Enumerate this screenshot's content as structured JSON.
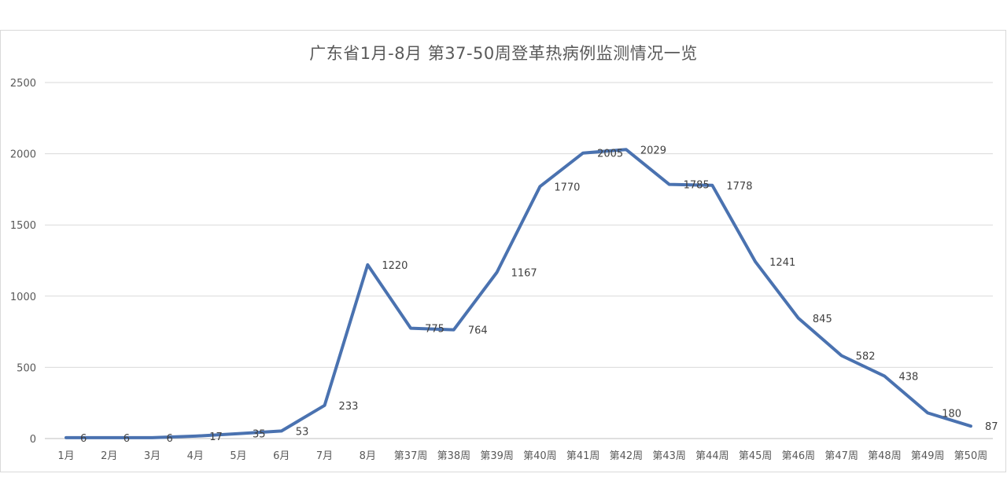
{
  "chart_data": {
    "type": "line",
    "title": "广东省1月-8月 第37-50周登革热病例监测情况一览",
    "categories": [
      "1月",
      "2月",
      "3月",
      "4月",
      "5月",
      "6月",
      "7月",
      "8月",
      "第37周",
      "第38周",
      "第39周",
      "第40周",
      "第41周",
      "第42周",
      "第43周",
      "第44周",
      "第45周",
      "第46周",
      "第47周",
      "第48周",
      "第49周",
      "第50周"
    ],
    "series": [
      {
        "values": [
          6,
          6,
          6,
          17,
          35,
          53,
          233,
          1220,
          775,
          764,
          1167,
          1770,
          2005,
          2029,
          1785,
          1778,
          1241,
          845,
          582,
          438,
          180,
          87
        ]
      }
    ],
    "ylim": [
      0,
      2500
    ],
    "yticks": [
      0,
      500,
      1000,
      1500,
      2000,
      2500
    ],
    "grid": true,
    "data_labels": true,
    "line_color": "#4a72b0"
  }
}
